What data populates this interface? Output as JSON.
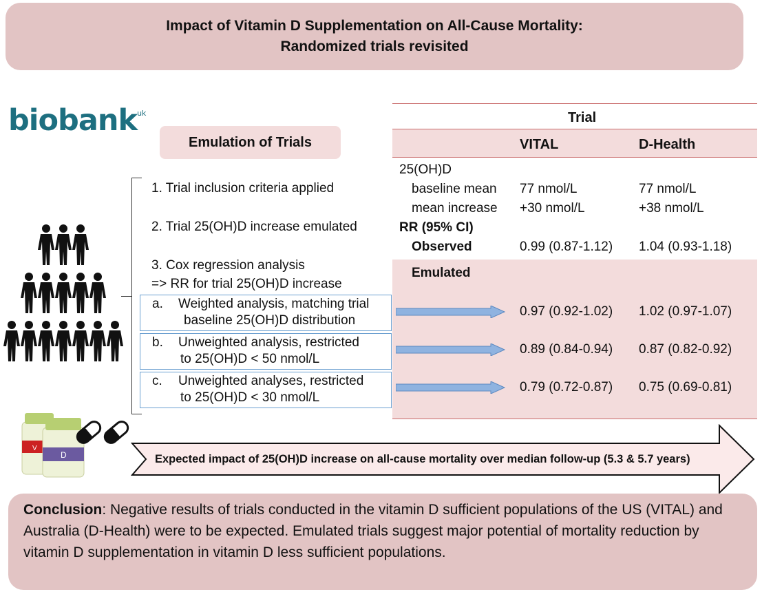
{
  "title": {
    "line1": "Impact of Vitamin D Supplementation on All-Cause Mortality:",
    "line2": "Randomized trials revisited"
  },
  "logo": {
    "text": "biobank",
    "sup": "uk"
  },
  "emulation": {
    "heading": "Emulation of Trials",
    "steps": [
      "1. Trial inclusion criteria applied",
      "2. Trial 25(OH)D increase emulated",
      "3. Cox regression analysis",
      "=> RR for trial 25(OH)D increase"
    ],
    "analyses": [
      {
        "letter": "a.",
        "line1": "Weighted analysis, matching trial",
        "line2": "baseline 25(OH)D distribution"
      },
      {
        "letter": "b.",
        "line1": "Unweighted analysis, restricted",
        "line2": "to 25(OH)D < 50 nmol/L"
      },
      {
        "letter": "c.",
        "line1": "Unweighted analyses, restricted",
        "line2": "to 25(OH)D < 30 nmol/L"
      }
    ]
  },
  "table": {
    "header": "Trial",
    "columns": [
      "VITAL",
      "D-Health"
    ],
    "row_25ohd": "25(OH)D",
    "baseline_label": "baseline mean",
    "baseline": [
      "77 nmol/L",
      "77 nmol/L"
    ],
    "increase_label": "mean increase",
    "increase": [
      "+30 nmol/L",
      "+38 nmol/L"
    ],
    "rr_label": "RR (95% CI)",
    "observed_label": "Observed",
    "observed": [
      "0.99 (0.87-1.12)",
      "1.04 (0.93-1.18)"
    ],
    "emulated_label": "Emulated",
    "emulated": [
      [
        "0.97 (0.92-1.02)",
        "1.02 (0.97-1.07)"
      ],
      [
        "0.89 (0.84-0.94)",
        "0.87 (0.82-0.92)"
      ],
      [
        "0.79 (0.72-0.87)",
        "0.75 (0.69-0.81)"
      ]
    ]
  },
  "bottles": {
    "left_label": "V",
    "right_label": "D"
  },
  "arrow_text": "Expected impact of 25(OH)D increase on all-cause mortality over median follow-up (5.3 & 5.7 years)",
  "conclusion": {
    "label": "Conclusion",
    "text": ": Negative results of trials conducted in the vitamin D sufficient populations of the US (VITAL) and Australia (D-Health) were to be expected. Emulated trials suggest major potential of mortality reduction by vitamin D supplementation in vitamin D less sufficient populations."
  },
  "colors": {
    "title_bg": "#e2c4c4",
    "band_bg": "#f3dcdc",
    "table_line": "#c96a6a",
    "box_border": "#6a9fd0",
    "logo": "#1d6f80"
  }
}
